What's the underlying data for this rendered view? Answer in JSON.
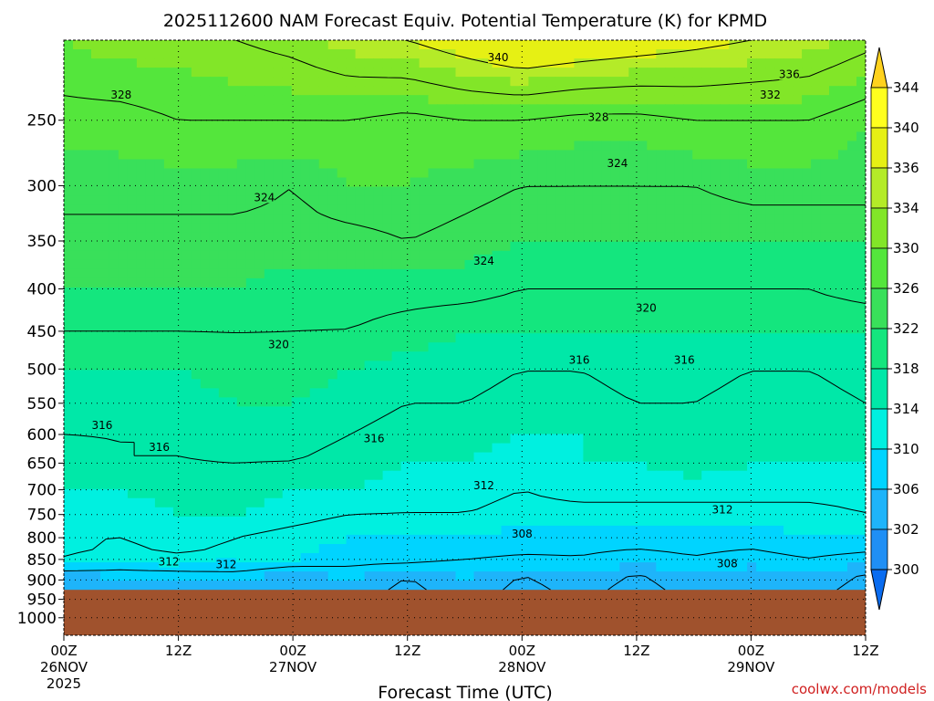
{
  "chart_data": {
    "type": "heatmap",
    "title": "2025112600 NAM Forecast Equiv. Potential Temperature (K) for KPMD",
    "xlabel": "Forecast Time (UTC)",
    "ylabel": "",
    "x_ticks": [
      {
        "hour": 0,
        "label": "00Z",
        "sub": "26NOV",
        "sub2": "2025"
      },
      {
        "hour": 12,
        "label": "12Z",
        "sub": "",
        "sub2": ""
      },
      {
        "hour": 24,
        "label": "00Z",
        "sub": "27NOV",
        "sub2": ""
      },
      {
        "hour": 36,
        "label": "12Z",
        "sub": "",
        "sub2": ""
      },
      {
        "hour": 48,
        "label": "00Z",
        "sub": "28NOV",
        "sub2": ""
      },
      {
        "hour": 60,
        "label": "12Z",
        "sub": "",
        "sub2": ""
      },
      {
        "hour": 72,
        "label": "00Z",
        "sub": "29NOV",
        "sub2": ""
      },
      {
        "hour": 84,
        "label": "12Z",
        "sub": "",
        "sub2": ""
      }
    ],
    "xlim_hours": [
      0,
      84
    ],
    "y_ticks": [
      250,
      300,
      350,
      400,
      450,
      500,
      550,
      600,
      650,
      700,
      750,
      800,
      850,
      900,
      950,
      1000
    ],
    "ylim_hpa": [
      200,
      1050
    ],
    "log_pressure_axis": true,
    "terrain_top_hpa": 925,
    "terrain_color": "#a0522d",
    "contour_interval_k": 4,
    "grid": "dotted",
    "colorbar": {
      "levels": [
        300,
        302,
        306,
        310,
        314,
        318,
        322,
        326,
        330,
        334,
        336,
        340,
        344
      ],
      "labels": [
        "344",
        "340",
        "336",
        "334",
        "330",
        "326",
        "322",
        "318",
        "314",
        "310",
        "306",
        "302",
        "300"
      ],
      "colors": [
        "#0a6cf0",
        "#1f8ff5",
        "#1eb4fa",
        "#00d4ff",
        "#00f0e0",
        "#00e8a8",
        "#14e67e",
        "#39e05a",
        "#54e63c",
        "#82e628",
        "#b4eb28",
        "#e6f014",
        "#ffff1e",
        "#ffd21e"
      ],
      "placement": "right"
    },
    "values_hours": [
      0,
      6,
      12,
      18,
      24,
      30,
      36,
      42,
      48,
      54,
      60,
      66,
      72,
      78,
      84
    ],
    "values_levels_hpa": [
      900,
      850,
      800,
      750,
      700,
      650,
      600,
      550,
      500,
      450,
      400,
      350,
      300,
      250,
      200
    ],
    "values_k": [
      [
        304,
        305,
        305,
        306,
        304,
        306,
        303,
        306,
        303,
        305,
        303,
        305,
        304,
        305,
        303
      ],
      [
        313,
        311,
        312,
        311,
        310,
        309,
        309,
        308,
        308,
        308,
        307,
        308,
        307,
        308,
        307
      ],
      [
        312,
        312,
        313,
        312,
        311,
        310,
        310,
        310,
        309,
        309,
        309,
        309,
        309,
        310,
        310
      ],
      [
        313,
        313,
        314,
        314,
        313,
        312,
        312,
        312,
        311,
        311,
        311,
        311,
        311,
        311,
        312
      ],
      [
        314,
        314,
        315,
        315,
        314,
        314,
        313,
        313,
        312,
        313,
        313,
        313,
        313,
        313,
        313
      ],
      [
        315,
        316,
        316,
        316,
        316,
        315,
        314,
        314,
        313,
        314,
        314,
        315,
        314,
        314,
        314
      ],
      [
        316,
        316,
        316,
        317,
        317,
        316,
        315,
        315,
        314,
        314,
        315,
        315,
        314,
        314,
        315
      ],
      [
        317,
        317,
        317,
        318,
        318,
        317,
        316,
        316,
        315,
        315,
        316,
        316,
        315,
        315,
        316
      ],
      [
        318,
        318,
        318,
        319,
        319,
        318,
        317,
        317,
        316,
        316,
        317,
        317,
        316,
        316,
        317
      ],
      [
        320,
        320,
        320,
        320,
        320,
        320,
        319,
        318,
        318,
        318,
        318,
        318,
        318,
        318,
        318
      ],
      [
        322,
        322,
        322,
        322,
        321,
        321,
        321,
        321,
        320,
        320,
        320,
        320,
        320,
        320,
        321
      ],
      [
        323,
        323,
        323,
        323,
        323,
        323,
        324,
        323,
        322,
        322,
        322,
        322,
        322,
        322,
        322
      ],
      [
        325,
        325,
        325,
        325,
        324,
        326,
        326,
        325,
        324,
        324,
        324,
        324,
        325,
        325,
        325
      ],
      [
        327,
        327,
        328,
        328,
        328,
        328,
        327,
        328,
        328,
        327,
        327,
        328,
        328,
        328,
        326
      ],
      [
        330,
        331,
        331,
        332,
        333,
        335,
        336,
        338,
        340,
        339,
        338,
        337,
        336,
        335,
        333
      ]
    ],
    "contour_labels": [
      {
        "text": "340",
        "hour": 45.5,
        "hpa": 210
      },
      {
        "text": "336",
        "hour": 76,
        "hpa": 220
      },
      {
        "text": "332",
        "hour": 74,
        "hpa": 233
      },
      {
        "text": "328",
        "hour": 6,
        "hpa": 233
      },
      {
        "text": "328",
        "hour": 56,
        "hpa": 248
      },
      {
        "text": "324",
        "hour": 58,
        "hpa": 282
      },
      {
        "text": "324",
        "hour": 21,
        "hpa": 310
      },
      {
        "text": "324",
        "hour": 44,
        "hpa": 370
      },
      {
        "text": "320",
        "hour": 61,
        "hpa": 422
      },
      {
        "text": "320",
        "hour": 22.5,
        "hpa": 467
      },
      {
        "text": "316",
        "hour": 54,
        "hpa": 488
      },
      {
        "text": "316",
        "hour": 65,
        "hpa": 488
      },
      {
        "text": "316",
        "hour": 4,
        "hpa": 585
      },
      {
        "text": "316",
        "hour": 10,
        "hpa": 622
      },
      {
        "text": "316",
        "hour": 32.5,
        "hpa": 607
      },
      {
        "text": "312",
        "hour": 44,
        "hpa": 692
      },
      {
        "text": "312",
        "hour": 69,
        "hpa": 740
      },
      {
        "text": "308",
        "hour": 48,
        "hpa": 792
      },
      {
        "text": "312",
        "hour": 11,
        "hpa": 856
      },
      {
        "text": "312",
        "hour": 17,
        "hpa": 862
      },
      {
        "text": "308",
        "hour": 69.5,
        "hpa": 860
      }
    ]
  },
  "credit": "coolwx.com/models"
}
